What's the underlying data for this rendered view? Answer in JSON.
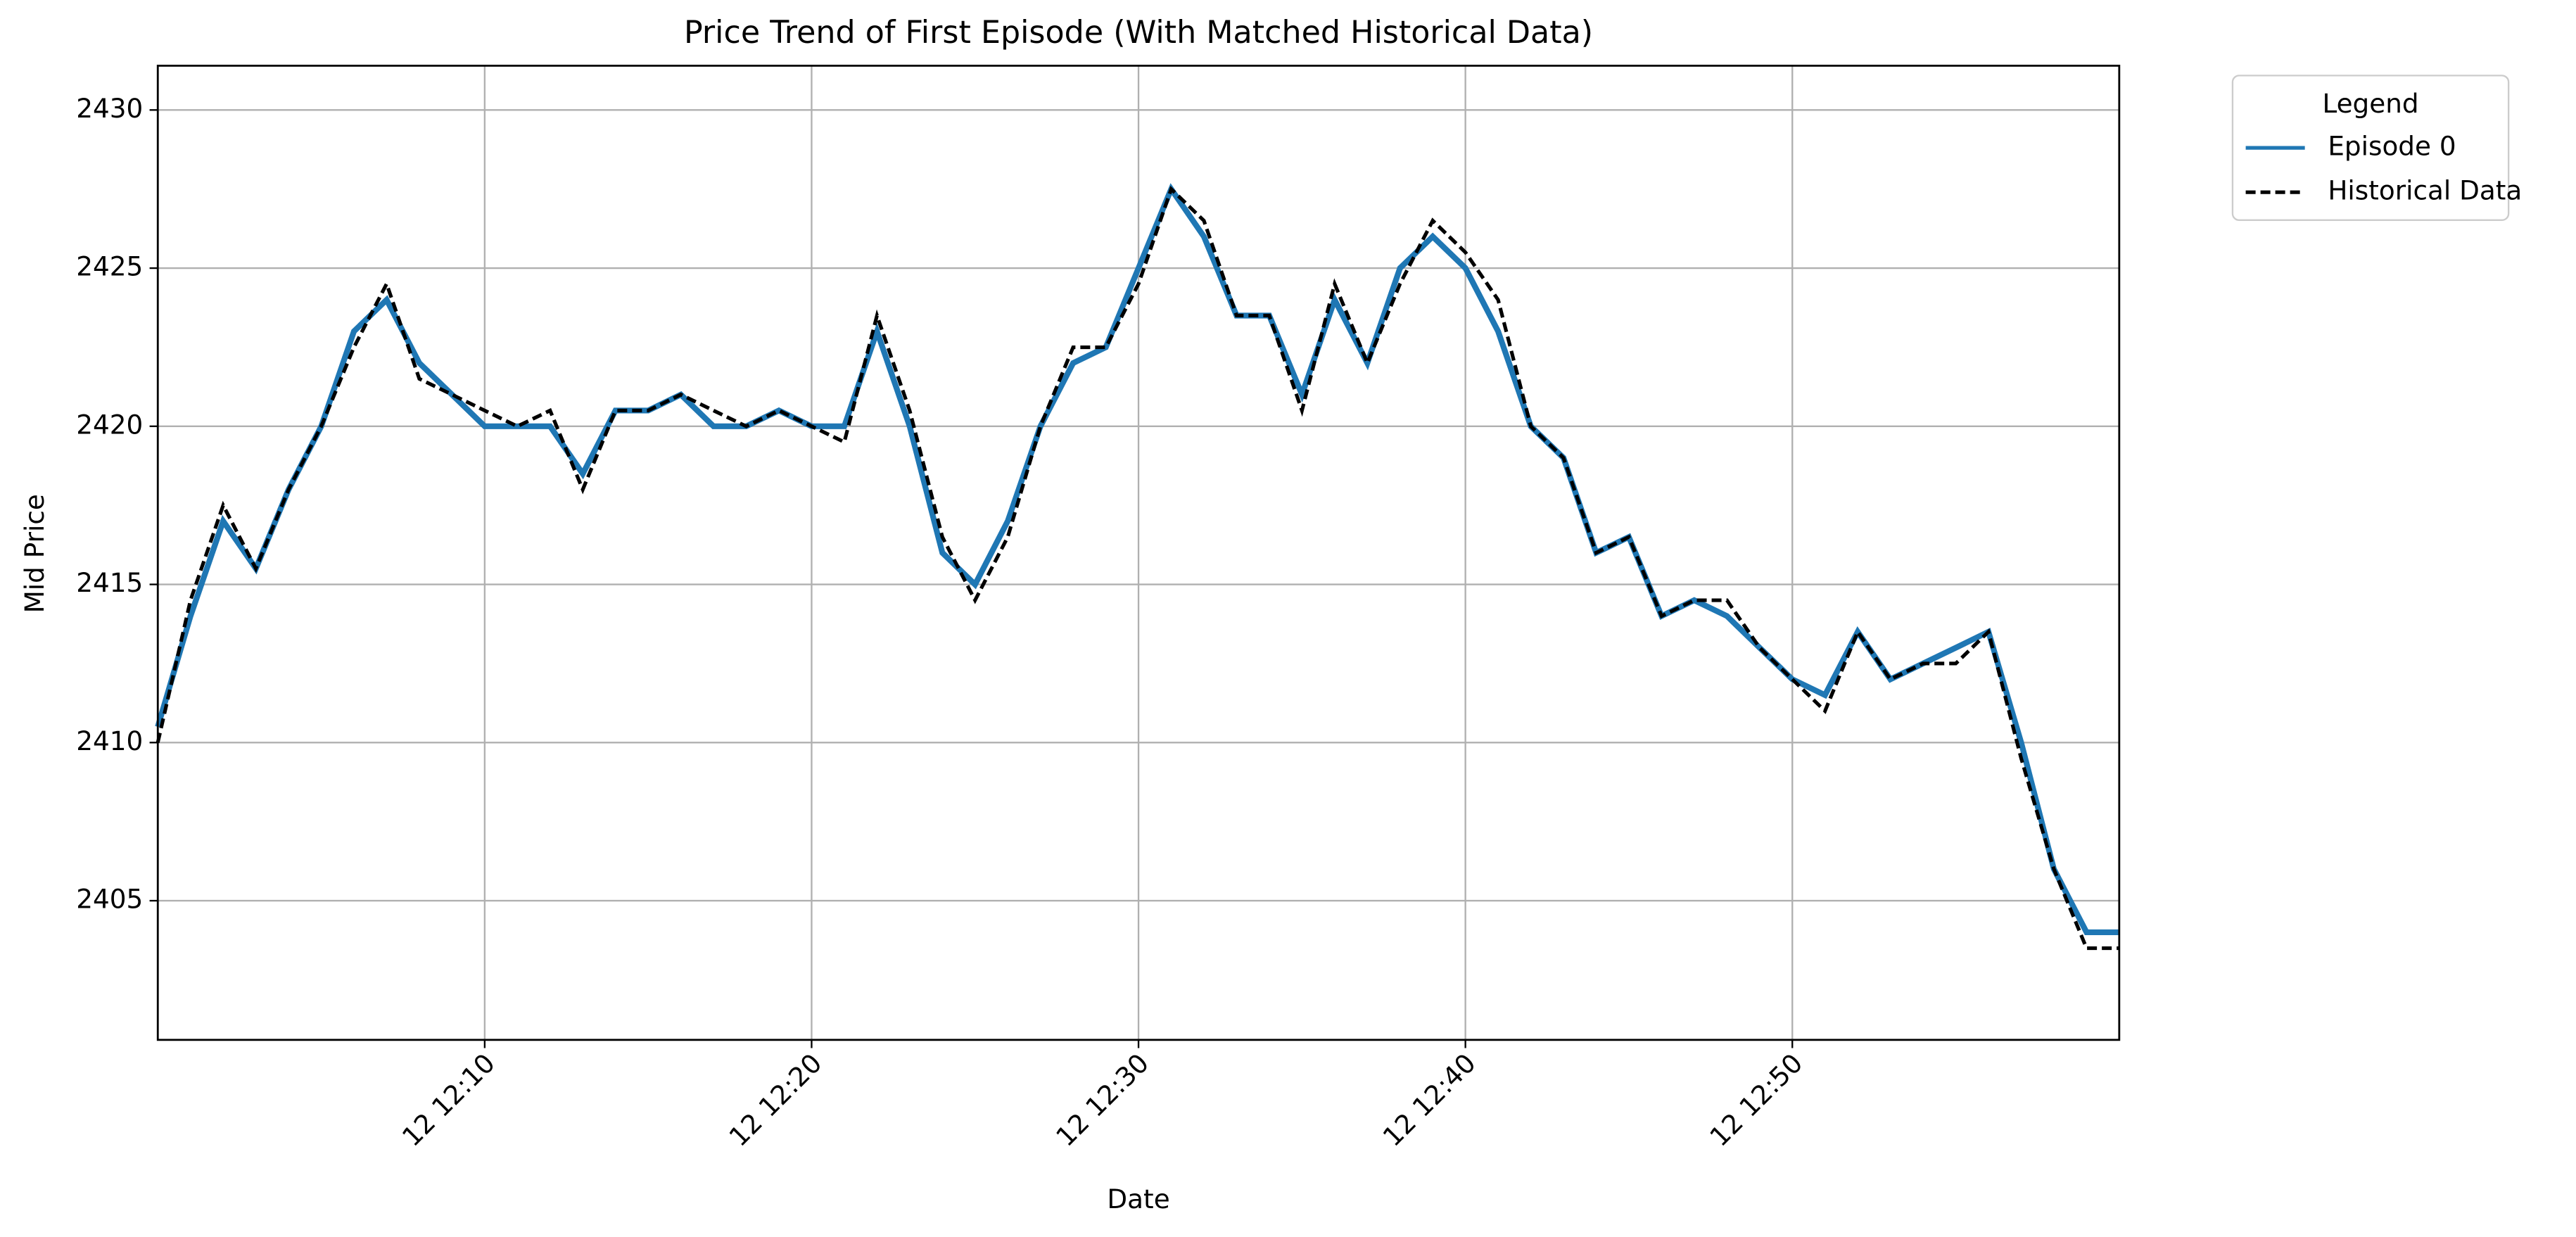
{
  "chart_data": {
    "type": "line",
    "title": "Price Trend of First Episode (With Matched Historical Data)",
    "x_label": "Date",
    "y_label": "Mid Price",
    "x": [
      "12 12:00",
      "12 12:01",
      "12 12:02",
      "12 12:03",
      "12 12:04",
      "12 12:05",
      "12 12:06",
      "12 12:07",
      "12 12:08",
      "12 12:09",
      "12 12:10",
      "12 12:11",
      "12 12:12",
      "12 12:13",
      "12 12:14",
      "12 12:15",
      "12 12:16",
      "12 12:17",
      "12 12:18",
      "12 12:19",
      "12 12:20",
      "12 12:21",
      "12 12:22",
      "12 12:23",
      "12 12:24",
      "12 12:25",
      "12 12:26",
      "12 12:27",
      "12 12:28",
      "12 12:29",
      "12 12:30",
      "12 12:31",
      "12 12:32",
      "12 12:33",
      "12 12:34",
      "12 12:35",
      "12 12:36",
      "12 12:37",
      "12 12:38",
      "12 12:39",
      "12 12:40",
      "12 12:41",
      "12 12:42",
      "12 12:43",
      "12 12:44",
      "12 12:45",
      "12 12:46",
      "12 12:47",
      "12 12:48",
      "12 12:49",
      "12 12:50",
      "12 12:51",
      "12 12:52",
      "12 12:53",
      "12 12:54",
      "12 12:55",
      "12 12:56",
      "12 12:57",
      "12 12:58",
      "12 12:59",
      "12 13:00"
    ],
    "series": [
      {
        "name": "Episode 0",
        "color": "#1f77b4",
        "style": "solid",
        "values": [
          2410.5,
          2414,
          2417,
          2415.5,
          2418,
          2420,
          2423,
          2424,
          2422,
          2421,
          2420,
          2420,
          2420,
          2418.5,
          2420.5,
          2420.5,
          2421,
          2420,
          2420,
          2420.5,
          2420,
          2420,
          2423,
          2420,
          2416,
          2415,
          2417,
          2420,
          2422,
          2422.5,
          2425,
          2427.5,
          2426,
          2423.5,
          2423.5,
          2421,
          2424,
          2422,
          2425,
          2426,
          2425,
          2423,
          2420,
          2419,
          2416,
          2416.5,
          2414,
          2414.5,
          2414,
          2413,
          2412,
          2411.5,
          2413.5,
          2412,
          2412.5,
          2413,
          2413.5,
          2410,
          2406,
          2404,
          2404
        ]
      },
      {
        "name": "Historical Data",
        "color": "#000000",
        "style": "dashed",
        "values": [
          2410,
          2414.5,
          2417.5,
          2415.5,
          2418,
          2420,
          2422.5,
          2424.5,
          2421.5,
          2421,
          2420.5,
          2420,
          2420.5,
          2418,
          2420.5,
          2420.5,
          2421,
          2420.5,
          2420,
          2420.5,
          2420,
          2419.5,
          2423.5,
          2420.5,
          2416.5,
          2414.5,
          2416.5,
          2420,
          2422.5,
          2422.5,
          2424.5,
          2427.5,
          2426.5,
          2423.5,
          2423.5,
          2420.5,
          2424.5,
          2422,
          2424.5,
          2426.5,
          2425.5,
          2424,
          2420,
          2419,
          2416,
          2416.5,
          2414,
          2414.5,
          2414.5,
          2413,
          2412,
          2411,
          2413.5,
          2412,
          2412.5,
          2412.5,
          2413.5,
          2409.5,
          2406,
          2403.5,
          2403.5
        ]
      }
    ],
    "xlim": [
      "12 12:00",
      "12 13:00"
    ],
    "xticks": [
      "12 12:10",
      "12 12:20",
      "12 12:30",
      "12 12:40",
      "12 12:50"
    ],
    "ylim": [
      2400.6,
      2431.4
    ],
    "yticks": [
      2405,
      2410,
      2415,
      2420,
      2425,
      2430
    ],
    "grid": true,
    "legend_title": "Legend",
    "legend_position": "outside-upper-right"
  }
}
